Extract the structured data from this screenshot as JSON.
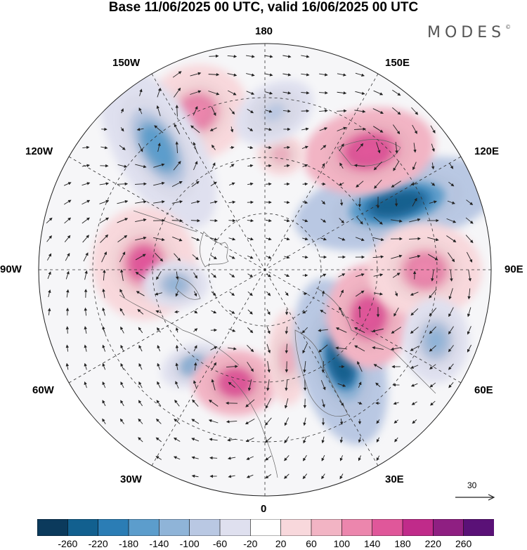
{
  "title": "Base 11/06/2025 00 UTC, valid 16/06/2025 00 UTC",
  "brand": "MODES",
  "brand_mark": "©",
  "longitude_labels": {
    "top": "180",
    "bottom": "0",
    "left": "90W",
    "right": "90E",
    "upper_left": "150W",
    "upper_right": "150E",
    "mid_upper_left": "120W",
    "mid_upper_right": "120E",
    "mid_lower_left": "60W",
    "mid_lower_right": "60E",
    "lower_left": "30W",
    "lower_right": "30E"
  },
  "reference_vector": {
    "label": "30"
  },
  "colorbar": {
    "ticks": [
      "-260",
      "-220",
      "-180",
      "-140",
      "-100",
      "-60",
      "-20",
      "20",
      "60",
      "100",
      "140",
      "180",
      "220",
      "260"
    ],
    "colors": [
      "#0b3a5c",
      "#12608f",
      "#2b7db5",
      "#5c9dcc",
      "#8fb4d8",
      "#b9c8e3",
      "#dfe0ef",
      "#ffffff",
      "#f8d8dc",
      "#f2b4c4",
      "#ec86ad",
      "#e0579a",
      "#c02b8a",
      "#8f1f82",
      "#5a1177"
    ]
  },
  "anomalies": [
    {
      "name": "pink-north-pacific",
      "value": 120
    },
    {
      "name": "blue-gulf-alaska",
      "value": -140
    },
    {
      "name": "pink-canada-west",
      "value": 160
    },
    {
      "name": "blue-hudson",
      "value": -100
    },
    {
      "name": "blue-labrador",
      "value": -120
    },
    {
      "name": "pink-atlantic",
      "value": 180
    },
    {
      "name": "pink-scandinavia",
      "value": 100
    },
    {
      "name": "blue-europe-east",
      "value": -220
    },
    {
      "name": "pink-ural",
      "value": 180
    },
    {
      "name": "blue-siberia",
      "value": -240
    },
    {
      "name": "pink-east-siberia",
      "value": 180
    },
    {
      "name": "pink-central-asia",
      "value": 120
    },
    {
      "name": "blue-central-asia",
      "value": -100
    },
    {
      "name": "pink-arctic-small",
      "value": 80
    },
    {
      "name": "blue-bering",
      "value": -60
    }
  ]
}
